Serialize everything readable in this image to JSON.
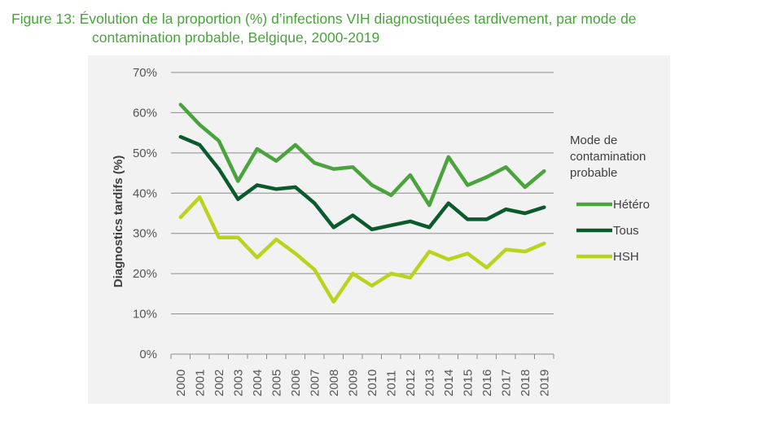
{
  "figure": {
    "title_prefix": "Figure 13:",
    "title_line1": "Évolution de la proportion (%) d’infections VIH diagnostiquées tardivement, par mode de",
    "title_line2": "contamination probable, Belgique, 2000-2019"
  },
  "colors": {
    "title": "#4aa33c",
    "hetero": "#4aa33c",
    "tous": "#0a5a2e",
    "hsh": "#bcd31d",
    "gridline": "#8c8c8c",
    "panel": "#f2f2f2"
  },
  "chart_data": {
    "type": "line",
    "title": "",
    "xlabel": "",
    "ylabel": "Diagnostics tardifs (%)",
    "ylim": [
      0,
      70
    ],
    "yticks": [
      "0%",
      "10%",
      "20%",
      "30%",
      "40%",
      "50%",
      "60%",
      "70%"
    ],
    "grid": "horizontal",
    "legend_title": "Mode de contamination probable",
    "legend_placement": "right",
    "categories": [
      "2000",
      "2001",
      "2002",
      "2003",
      "2004",
      "2005",
      "2006",
      "2007",
      "2008",
      "2009",
      "2010",
      "2011",
      "2012",
      "2013",
      "2014",
      "2015",
      "2016",
      "2017",
      "2018",
      "2019"
    ],
    "series": [
      {
        "name": "Hétéro",
        "color": "#4aa33c",
        "values": [
          62,
          57,
          53,
          43,
          51,
          48,
          52,
          47.5,
          46,
          46.5,
          42,
          39.5,
          44.5,
          37,
          49,
          42,
          44,
          46.5,
          41.5,
          45.5
        ]
      },
      {
        "name": "Tous",
        "color": "#0a5a2e",
        "values": [
          54,
          52,
          46,
          38.5,
          42,
          41,
          41.5,
          37.5,
          31.5,
          34.5,
          31,
          32,
          33,
          31.5,
          37.5,
          33.5,
          33.5,
          36,
          35,
          36.5
        ]
      },
      {
        "name": "HSH",
        "color": "#bcd31d",
        "values": [
          34,
          39,
          29,
          29,
          24,
          28.5,
          25,
          21,
          13,
          20,
          17,
          20,
          19,
          25.5,
          23.5,
          25,
          21.5,
          26,
          25.5,
          27.5
        ]
      }
    ]
  }
}
